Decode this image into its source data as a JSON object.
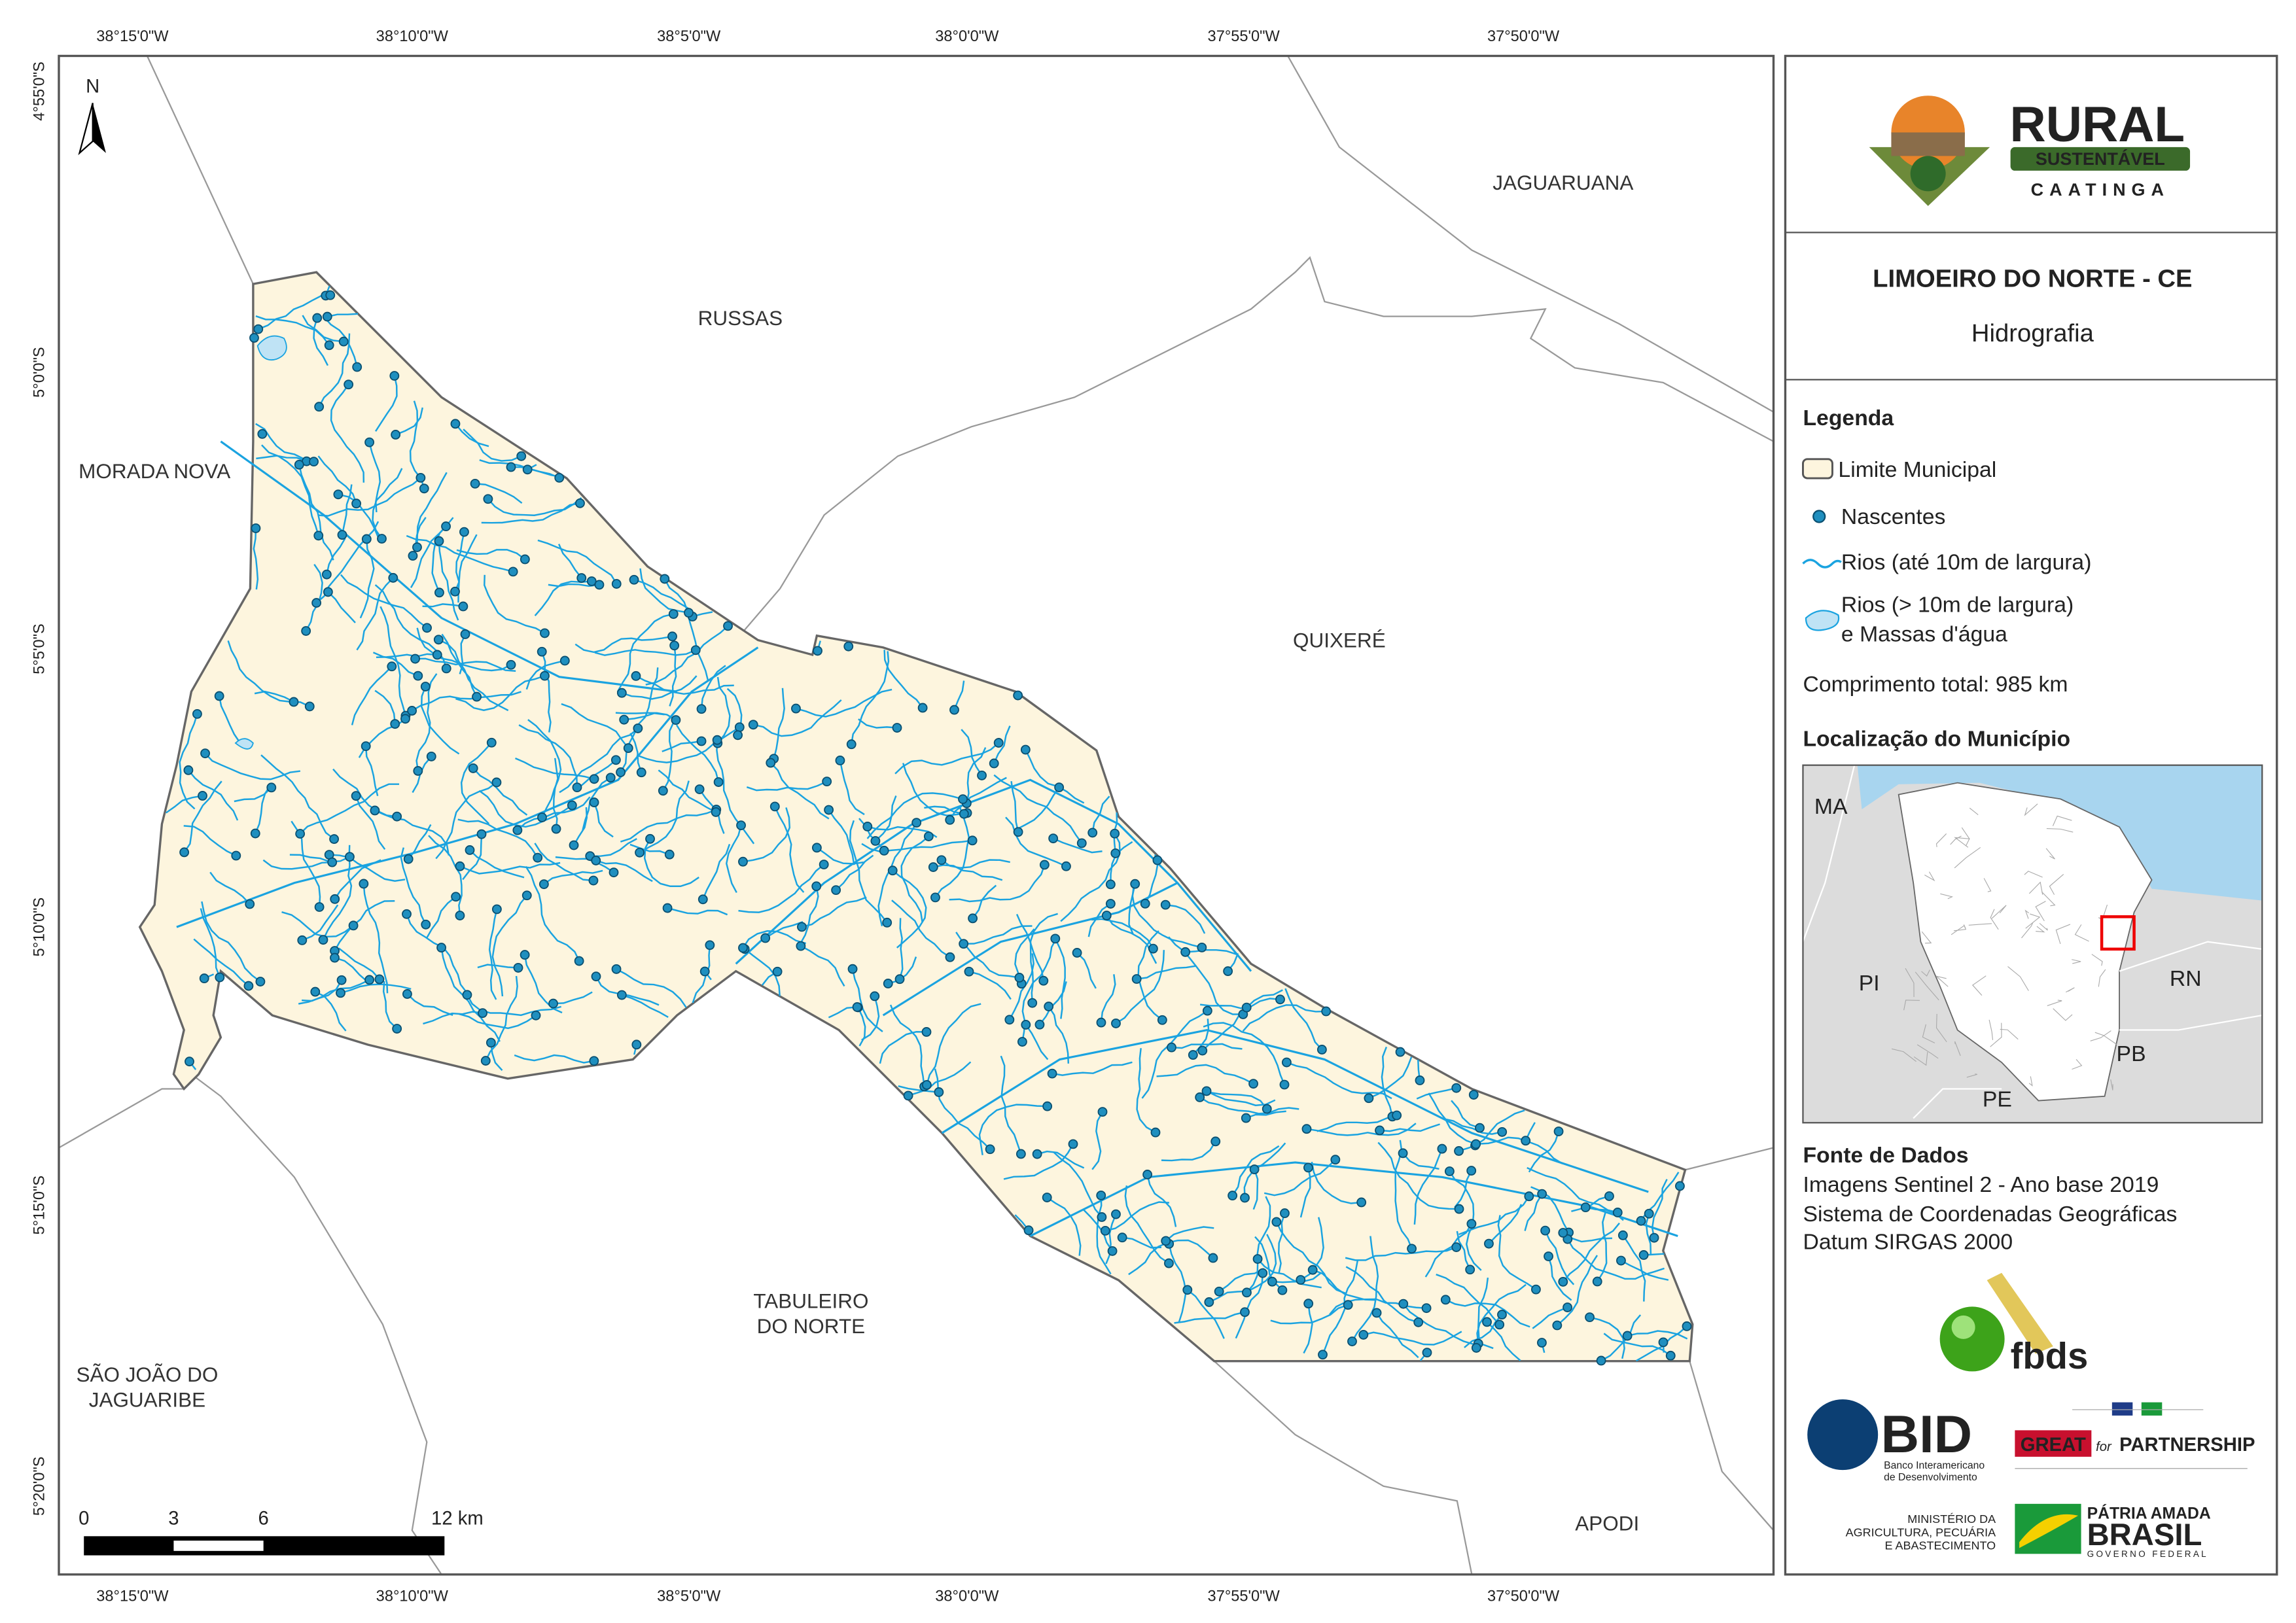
{
  "map": {
    "title": "LIMOEIRO DO NORTE - CE",
    "subtitle": "Hidrografia",
    "north": "N",
    "longitude_labels": [
      "38°15'0\"W",
      "38°10'0\"W",
      "38°5'0\"W",
      "38°0'0\"W",
      "37°55'0\"W",
      "37°50'0\"W"
    ],
    "latitude_labels": [
      "4°55'0\"S",
      "5°0'0\"S",
      "5°5'0\"S",
      "5°10'0\"S",
      "5°15'0\"S",
      "5°20'0\"S"
    ],
    "places": {
      "jaguaruana": [
        "JAGUARUANA"
      ],
      "russas": [
        "RUSSAS"
      ],
      "morada_nova": [
        "MORADA NOVA"
      ],
      "quixere": [
        "QUIXERÉ"
      ],
      "tabuleiro": [
        "TABULEIRO",
        "DO NORTE"
      ],
      "sao_joao": [
        "SÃO JOÃO DO",
        "JAGUARIBE"
      ],
      "apodi": [
        "APODI"
      ]
    },
    "scale_bar": [
      "0",
      "3",
      "6",
      "12 km"
    ]
  },
  "logo": {
    "line1": "RURAL",
    "line2": "SUSTENTÁVEL",
    "line3": "CAATINGA"
  },
  "legend": {
    "title": "Legenda",
    "items": [
      "Limite Municipal",
      "Nascentes",
      "Rios (até 10m de largura)",
      [
        "Rios (> 10m de largura)",
        "e Massas d'água"
      ]
    ],
    "total_length": "Comprimento total:  985 km"
  },
  "location": {
    "title": "Localização do Município",
    "states": [
      "MA",
      "PI",
      "RN",
      "PB",
      "PE"
    ]
  },
  "sources": {
    "title": "Fonte de Dados",
    "lines": [
      "Imagens Sentinel 2 - Ano base 2019",
      "Sistema de Coordenadas Geográficas",
      "Datum SIRGAS 2000"
    ]
  },
  "partners": {
    "fbds": "fbds",
    "bid": "BID",
    "bid_name": [
      "Banco Interamericano",
      "de Desenvolvimento"
    ],
    "great": "GREAT",
    "partnership": [
      "for",
      "PARTNERSHIP"
    ],
    "ministry": [
      "MINISTÉRIO DA",
      "AGRICULTURA, PECUÁRIA",
      "E ABASTECIMENTO"
    ],
    "brasil": [
      "PÁTRIA AMADA",
      "BRASIL",
      "GOVERNO FEDERAL"
    ]
  }
}
